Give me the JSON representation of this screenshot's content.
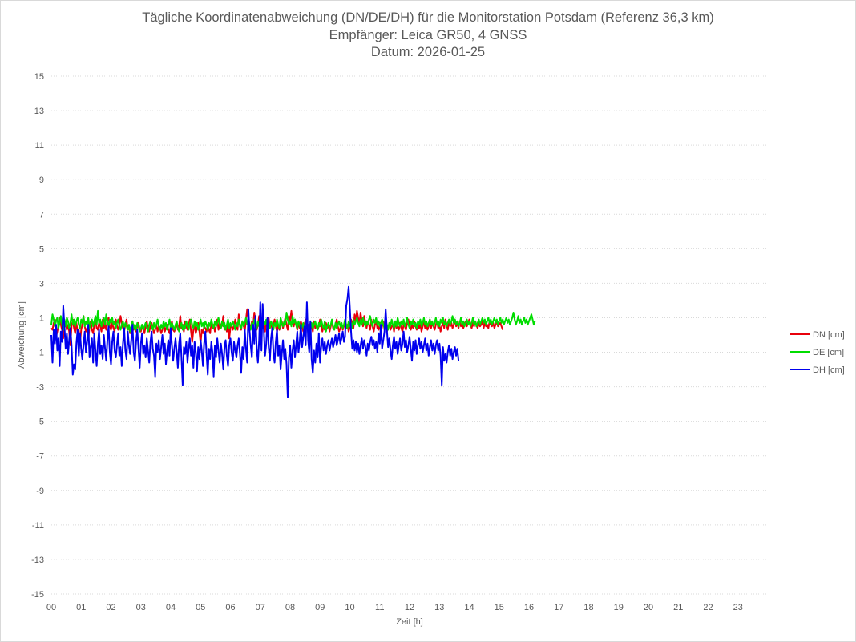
{
  "chart_data": {
    "type": "line",
    "title": "Tägliche Koordinatenabweichung (DN/DE/DH) für die Monitorstation Potsdam (Referenz 36,3 km)",
    "subtitle": "Empfänger: Leica GR50, 4 GNSS",
    "subtitle2": "Datum: 2026-01-25",
    "xlabel": "Zeit [h]",
    "ylabel": "Abweichung [cm]",
    "xlim": [
      0,
      24
    ],
    "ylim": [
      -15,
      15
    ],
    "yticks": [
      15,
      13,
      11,
      9,
      7,
      5,
      3,
      1,
      -1,
      -3,
      -5,
      -7,
      -9,
      -11,
      -13,
      -15
    ],
    "xticks": [
      "00",
      "01",
      "02",
      "03",
      "04",
      "05",
      "06",
      "07",
      "08",
      "09",
      "10",
      "11",
      "12",
      "13",
      "14",
      "15",
      "16",
      "17",
      "18",
      "19",
      "20",
      "21",
      "22",
      "23"
    ],
    "grid": true,
    "legend_position": "right",
    "sample_interval_h": 0.04,
    "series": [
      {
        "name": "DN [cm]",
        "color": "#e8000b",
        "values": [
          0.4,
          0.3,
          0.7,
          0.9,
          -0.1,
          0.2,
          0.5,
          1.0,
          0.6,
          0.3,
          -0.2,
          0.4,
          0.8,
          0.3,
          0.6,
          0.2,
          -0.6,
          0.5,
          0.9,
          0.4,
          0.1,
          0.7,
          0.2,
          0.3,
          -0.5,
          0.3,
          0.6,
          1.1,
          0.5,
          0.2,
          0.4,
          -0.3,
          0.5,
          0.8,
          0.3,
          0.1,
          0.6,
          0.9,
          0.4,
          0.3,
          0.7,
          0.5,
          0.2,
          0.9,
          0.4,
          0.6,
          0.3,
          0.8,
          1.0,
          0.5,
          0.3,
          0.7,
          0.4,
          0.2,
          0.9,
          0.6,
          0.3,
          0.5,
          1.1,
          0.7,
          0.4,
          0.2,
          0.6,
          0.9,
          0.3,
          0.5,
          0.1,
          0.4,
          0.8,
          0.3,
          0.6,
          0.2,
          0.5,
          0.7,
          0.3,
          0.2,
          0.6,
          0.4,
          0.1,
          0.5,
          0.8,
          0.3,
          0.2,
          0.5,
          0.7,
          0.4,
          0.1,
          0.3,
          0.6,
          0.2,
          0.5,
          0.4,
          0.1,
          0.3,
          0.7,
          0.2,
          0.4,
          0.6,
          0.3,
          0.1,
          0.5,
          0.8,
          0.3,
          0.2,
          0.4,
          0.7,
          0.3,
          0.5,
          1.1,
          0.4,
          0.6,
          0.2,
          0.8,
          0.5,
          0.3,
          0.6,
          0.9,
          0.2,
          -0.4,
          0.3,
          0.5,
          0.1,
          0.4,
          0.7,
          0.2,
          -0.5,
          0.3,
          0.1,
          0.5,
          0.4,
          0.2,
          0.6,
          0.3,
          0.1,
          0.8,
          0.4,
          0.6,
          0.2,
          0.5,
          0.9,
          0.3,
          0.7,
          0.4,
          0.6,
          1.1,
          0.3,
          0.5,
          0.2,
          0.8,
          -0.2,
          0.4,
          0.6,
          0.3,
          0.5,
          0.9,
          0.6,
          0.3,
          1.2,
          0.5,
          0.3,
          0.8,
          0.6,
          0.2,
          0.9,
          1.5,
          1.0,
          0.6,
          0.4,
          0.8,
          0.5,
          1.3,
          0.7,
          0.3,
          0.6,
          1.1,
          0.8,
          0.5,
          0.9,
          0.6,
          0.2,
          0.8,
          0.5,
          1.0,
          0.4,
          0.7,
          0.3,
          0.6,
          0.9,
          0.5,
          0.2,
          0.6,
          0.3,
          0.5,
          0.8,
          0.4,
          0.7,
          1.0,
          0.6,
          0.3,
          1.1,
          0.8,
          1.4,
          0.7,
          0.5,
          0.9,
          0.6,
          0.3,
          0.7,
          0.4,
          0.8,
          0.5,
          0.2,
          0.6,
          0.9,
          0.4,
          0.6,
          0.3,
          0.7,
          0.5,
          0.2,
          0.8,
          0.4,
          0.6,
          0.3,
          0.5,
          0.9,
          0.6,
          0.2,
          0.5,
          0.3,
          0.7,
          0.4,
          0.6,
          0.2,
          0.5,
          0.8,
          0.4,
          0.3,
          0.6,
          0.9,
          0.5,
          0.2,
          0.4,
          0.7,
          0.3,
          0.5,
          0.8,
          0.4,
          0.6,
          0.2,
          0.5,
          0.9,
          0.7,
          0.4,
          1.2,
          0.8,
          1.4,
          1.0,
          0.6,
          1.3,
          0.8,
          0.5,
          1.1,
          0.7,
          0.4,
          0.8,
          0.6,
          0.3,
          0.9,
          0.5,
          0.2,
          0.6,
          0.8,
          0.4,
          0.3,
          0.7,
          0.1,
          0.5,
          0.8,
          0.3,
          0.6,
          0.2,
          0.4,
          0.7,
          0.3,
          0.5,
          0.6,
          0.2,
          0.8,
          0.4,
          0.5,
          0.3,
          0.7,
          0.4,
          0.2,
          0.6,
          0.5,
          0.3,
          0.7,
          0.9,
          0.5,
          0.3,
          0.6,
          0.4,
          0.8,
          0.5,
          0.3,
          0.7,
          0.4,
          0.6,
          0.2,
          0.5,
          0.8,
          0.4,
          0.6,
          0.3,
          0.5,
          0.9,
          0.4,
          0.7,
          0.5,
          0.3,
          0.6,
          0.8,
          0.4,
          0.6,
          0.2,
          0.5,
          0.7,
          0.4,
          0.9,
          0.6,
          0.3,
          0.8,
          0.5,
          0.7,
          0.4,
          0.6,
          0.9,
          0.5,
          0.7,
          0.4,
          0.8,
          0.5,
          0.7,
          0.4,
          0.6,
          0.8,
          0.5,
          0.7,
          0.9,
          0.6,
          0.4,
          0.7,
          0.5,
          0.8,
          0.6,
          0.4,
          0.7,
          0.5,
          0.6,
          0.8,
          0.4,
          0.7,
          0.5,
          0.6,
          0.4,
          0.8,
          0.6,
          0.5,
          0.7,
          0.4,
          0.6,
          0.8,
          0.5,
          0.6,
          0.7,
          0.5,
          0.3
        ]
      },
      {
        "name": "DE [cm]",
        "color": "#00dd00",
        "values": [
          0.6,
          1.2,
          0.9,
          0.5,
          0.8,
          1.0,
          0.4,
          0.7,
          1.1,
          0.6,
          0.3,
          0.9,
          0.5,
          1.0,
          0.8,
          0.4,
          0.7,
          1.2,
          0.6,
          0.9,
          0.5,
          0.8,
          1.0,
          0.6,
          0.4,
          0.9,
          0.7,
          1.1,
          0.5,
          0.8,
          0.6,
          1.0,
          0.4,
          0.7,
          0.9,
          0.5,
          0.8,
          1.1,
          0.6,
          1.4,
          0.7,
          0.9,
          0.5,
          0.8,
          1.0,
          0.6,
          1.2,
          0.8,
          0.5,
          0.9,
          0.7,
          1.0,
          0.6,
          0.8,
          0.4,
          0.7,
          0.9,
          0.5,
          0.3,
          0.6,
          0.8,
          0.4,
          0.7,
          0.5,
          0.3,
          0.6,
          0.2,
          0.5,
          0.8,
          0.4,
          0.6,
          0.3,
          0.7,
          0.5,
          0.2,
          0.4,
          0.6,
          0.3,
          0.5,
          0.7,
          0.4,
          0.2,
          0.6,
          0.8,
          0.5,
          0.3,
          0.7,
          0.4,
          0.6,
          0.9,
          0.5,
          0.3,
          0.6,
          0.4,
          0.8,
          0.5,
          0.7,
          0.3,
          0.6,
          0.9,
          0.4,
          0.7,
          0.5,
          0.3,
          0.6,
          0.8,
          0.4,
          0.2,
          0.5,
          0.7,
          0.3,
          0.6,
          0.4,
          0.8,
          0.5,
          0.3,
          0.7,
          0.9,
          0.6,
          0.4,
          0.8,
          0.5,
          0.7,
          0.3,
          0.6,
          0.9,
          0.5,
          0.7,
          0.4,
          0.8,
          0.6,
          0.3,
          0.7,
          0.5,
          0.9,
          0.6,
          0.4,
          0.8,
          0.5,
          0.7,
          1.0,
          0.6,
          0.4,
          0.8,
          0.5,
          0.7,
          0.3,
          0.6,
          0.9,
          0.4,
          0.7,
          0.5,
          0.8,
          0.6,
          0.3,
          0.7,
          0.5,
          0.9,
          0.6,
          0.4,
          0.8,
          0.5,
          0.7,
          1.0,
          0.6,
          0.8,
          0.5,
          0.3,
          0.7,
          0.5,
          0.9,
          0.6,
          0.4,
          0.8,
          0.5,
          1.1,
          0.7,
          0.4,
          0.8,
          0.6,
          0.9,
          0.5,
          0.7,
          0.4,
          0.8,
          0.6,
          0.3,
          0.7,
          0.5,
          0.9,
          0.6,
          0.4,
          1.0,
          0.7,
          0.5,
          0.8,
          0.6,
          1.3,
          0.9,
          0.6,
          0.8,
          0.5,
          1.1,
          0.7,
          0.9,
          0.6,
          0.4,
          0.8,
          0.6,
          0.3,
          0.5,
          0.7,
          0.1,
          0.4,
          0.6,
          0.2,
          0.5,
          0.3,
          0.7,
          0.4,
          0.6,
          0.8,
          0.5,
          0.3,
          0.7,
          0.5,
          0.9,
          0.6,
          0.4,
          0.8,
          0.2,
          0.5,
          0.7,
          0.4,
          0.6,
          0.9,
          0.5,
          0.3,
          0.7,
          0.4,
          0.6,
          0.8,
          0.5,
          0.7,
          0.4,
          0.6,
          0.9,
          0.6,
          0.4,
          0.8,
          0.5,
          0.7,
          0.4,
          0.9,
          0.6,
          0.8,
          1.0,
          0.7,
          0.5,
          0.9,
          0.6,
          1.0,
          0.7,
          0.5,
          0.8,
          0.6,
          0.9,
          1.1,
          0.7,
          0.5,
          0.9,
          0.7,
          1.0,
          0.6,
          0.8,
          0.5,
          0.7,
          0.9,
          0.6,
          0.4,
          0.8,
          0.6,
          0.3,
          0.7,
          0.5,
          0.9,
          0.6,
          0.4,
          0.8,
          0.5,
          1.0,
          0.7,
          0.5,
          0.8,
          0.6,
          0.9,
          0.5,
          0.7,
          1.0,
          0.6,
          0.4,
          0.8,
          0.6,
          0.9,
          0.5,
          0.7,
          0.4,
          0.8,
          0.6,
          0.9,
          0.5,
          0.7,
          1.0,
          0.6,
          0.8,
          0.5,
          0.7,
          0.9,
          0.6,
          0.8,
          0.5,
          0.7,
          1.0,
          0.6,
          0.8,
          0.5,
          0.9,
          0.7,
          1.0,
          0.6,
          0.8,
          0.5,
          0.7,
          0.9,
          0.6,
          0.8,
          1.1,
          0.7,
          0.9,
          0.6,
          0.8,
          0.5,
          0.7,
          1.0,
          0.6,
          0.8,
          0.5,
          0.7,
          0.9,
          0.6,
          0.8,
          0.5,
          0.7,
          1.0,
          0.6,
          0.8,
          0.5,
          0.7,
          0.9,
          0.6,
          0.8,
          1.0,
          0.7,
          0.9,
          0.6,
          0.8,
          1.0,
          0.7,
          0.9,
          0.6,
          0.8,
          1.0,
          0.7,
          0.9,
          0.6,
          0.8,
          1.0,
          0.7,
          0.9,
          0.6,
          0.8,
          1.0,
          0.7,
          0.9,
          0.6,
          0.8,
          1.0,
          1.3,
          0.9,
          0.6,
          0.8,
          1.1,
          0.7,
          0.9,
          0.6,
          0.8,
          1.0,
          0.7,
          0.9,
          0.6,
          0.8,
          1.0,
          1.2,
          0.9,
          0.6,
          0.8
        ]
      },
      {
        "name": "DH [cm]",
        "color": "#0000ee",
        "values": [
          0.0,
          -1.6,
          0.3,
          -0.5,
          0.6,
          -0.9,
          -0.2,
          -1.8,
          0.2,
          -0.4,
          1.7,
          0.5,
          -0.8,
          0.1,
          -1.1,
          -0.3,
          0.4,
          -0.6,
          -2.3,
          -1.7,
          -2.0,
          -0.5,
          0.3,
          -1.2,
          0.1,
          -0.8,
          -1.4,
          -0.6,
          0.2,
          -1.0,
          -0.4,
          0.6,
          -1.3,
          -0.7,
          -0.2,
          -1.6,
          0.1,
          -0.9,
          -1.8,
          -0.5,
          0.3,
          -1.1,
          -0.6,
          -1.4,
          0.0,
          -0.8,
          -1.5,
          -0.3,
          0.5,
          -1.0,
          -1.7,
          -0.4,
          0.2,
          -0.9,
          -1.3,
          -0.6,
          0.1,
          -1.2,
          -0.7,
          -1.8,
          -0.5,
          0.4,
          -0.9,
          -1.4,
          0.2,
          -0.6,
          -1.1,
          -0.3,
          0.6,
          -1.0,
          -1.5,
          -0.4,
          0.3,
          -0.8,
          -1.9,
          -0.5,
          0.1,
          -1.1,
          -0.6,
          -1.3,
          -0.2,
          -0.9,
          -1.6,
          -0.4,
          0.2,
          -0.8,
          -1.2,
          -2.4,
          -0.5,
          -1.0,
          -0.3,
          -1.4,
          -0.7,
          0.0,
          -1.1,
          -0.5,
          -1.7,
          -0.9,
          -0.3,
          -1.2,
          0.4,
          -0.6,
          -1.5,
          -0.8,
          -0.2,
          -1.0,
          -1.9,
          -0.5,
          0.1,
          -1.3,
          -2.9,
          -0.7,
          -1.1,
          -0.4,
          -1.6,
          -0.8,
          -0.2,
          -1.2,
          -0.6,
          -1.9,
          -0.4,
          -1.0,
          -2.1,
          -0.7,
          -1.4,
          -0.3,
          -0.9,
          -1.8,
          -0.5,
          0.2,
          -1.1,
          -2.3,
          -0.8,
          -1.4,
          -0.4,
          -1.0,
          -2.4,
          -0.6,
          -1.3,
          -0.2,
          -0.9,
          -1.6,
          -0.5,
          -1.1,
          -2.0,
          -0.7,
          -0.3,
          -1.2,
          -1.8,
          -0.6,
          -0.2,
          -1.0,
          -1.5,
          -0.4,
          -0.9,
          -1.3,
          -0.6,
          -0.2,
          -1.1,
          -2.2,
          -0.7,
          -1.4,
          0.3,
          -0.8,
          -1.6,
          1.5,
          0.3,
          -0.6,
          -1.3,
          0.6,
          -0.5,
          1.1,
          -0.8,
          -1.6,
          -0.3,
          1.9,
          -0.9,
          1.8,
          0.2,
          -1.2,
          -0.5,
          1.0,
          -0.7,
          -1.5,
          -0.2,
          0.4,
          -1.0,
          -1.6,
          -0.4,
          0.3,
          -1.2,
          -0.6,
          -2.0,
          -1.1,
          -0.3,
          -1.4,
          -0.8,
          -1.7,
          -3.6,
          -1.3,
          -0.6,
          -1.9,
          -0.9,
          -0.3,
          -1.3,
          -0.6,
          0.2,
          -1.0,
          -0.4,
          0.6,
          -0.7,
          -0.1,
          0.5,
          -0.6,
          1.9,
          -0.3,
          -1.0,
          0.8,
          -1.4,
          -2.2,
          -0.9,
          -1.6,
          -0.5,
          -1.3,
          0.1,
          -1.6,
          -0.7,
          -0.2,
          -0.9,
          -0.4,
          -1.1,
          -0.6,
          -0.3,
          -0.9,
          -0.5,
          -0.2,
          -0.7,
          -0.4,
          0.0,
          -0.6,
          -0.3,
          0.1,
          -0.5,
          -0.2,
          0.2,
          -0.4,
          -0.1,
          1.7,
          2.1,
          2.8,
          1.6,
          0.2,
          -0.8,
          -0.3,
          -0.9,
          -0.4,
          -1.0,
          -0.5,
          -1.1,
          -0.6,
          -0.2,
          -0.8,
          -0.3,
          -0.7,
          -1.2,
          -0.5,
          -0.9,
          -0.4,
          -0.1,
          -0.6,
          -0.3,
          -0.8,
          -0.4,
          -1.0,
          0.1,
          -0.5,
          0.6,
          -0.8,
          -0.3,
          0.2,
          1.5,
          0.3,
          -0.7,
          -0.2,
          -0.9,
          -1.4,
          -0.6,
          -0.1,
          -0.8,
          -0.4,
          -1.1,
          -0.6,
          -0.2,
          -0.9,
          -0.5,
          0.2,
          -0.7,
          -0.3,
          -1.0,
          -0.6,
          -0.1,
          -0.8,
          -1.5,
          -0.4,
          -0.9,
          -0.3,
          -1.1,
          -0.6,
          -0.2,
          -0.8,
          -0.4,
          -1.0,
          -0.6,
          -0.2,
          -0.9,
          -0.5,
          -1.2,
          -0.7,
          -0.3,
          -0.9,
          -0.5,
          -1.1,
          -0.6,
          -0.3,
          -0.9,
          -0.5,
          -1.2,
          -2.9,
          -0.7,
          -1.5,
          -1.1,
          -1.6,
          -1.0,
          -0.6,
          -1.2,
          -0.8,
          -1.4,
          -1.0,
          -0.7,
          -1.2,
          -0.8,
          -1.5
        ]
      }
    ]
  }
}
